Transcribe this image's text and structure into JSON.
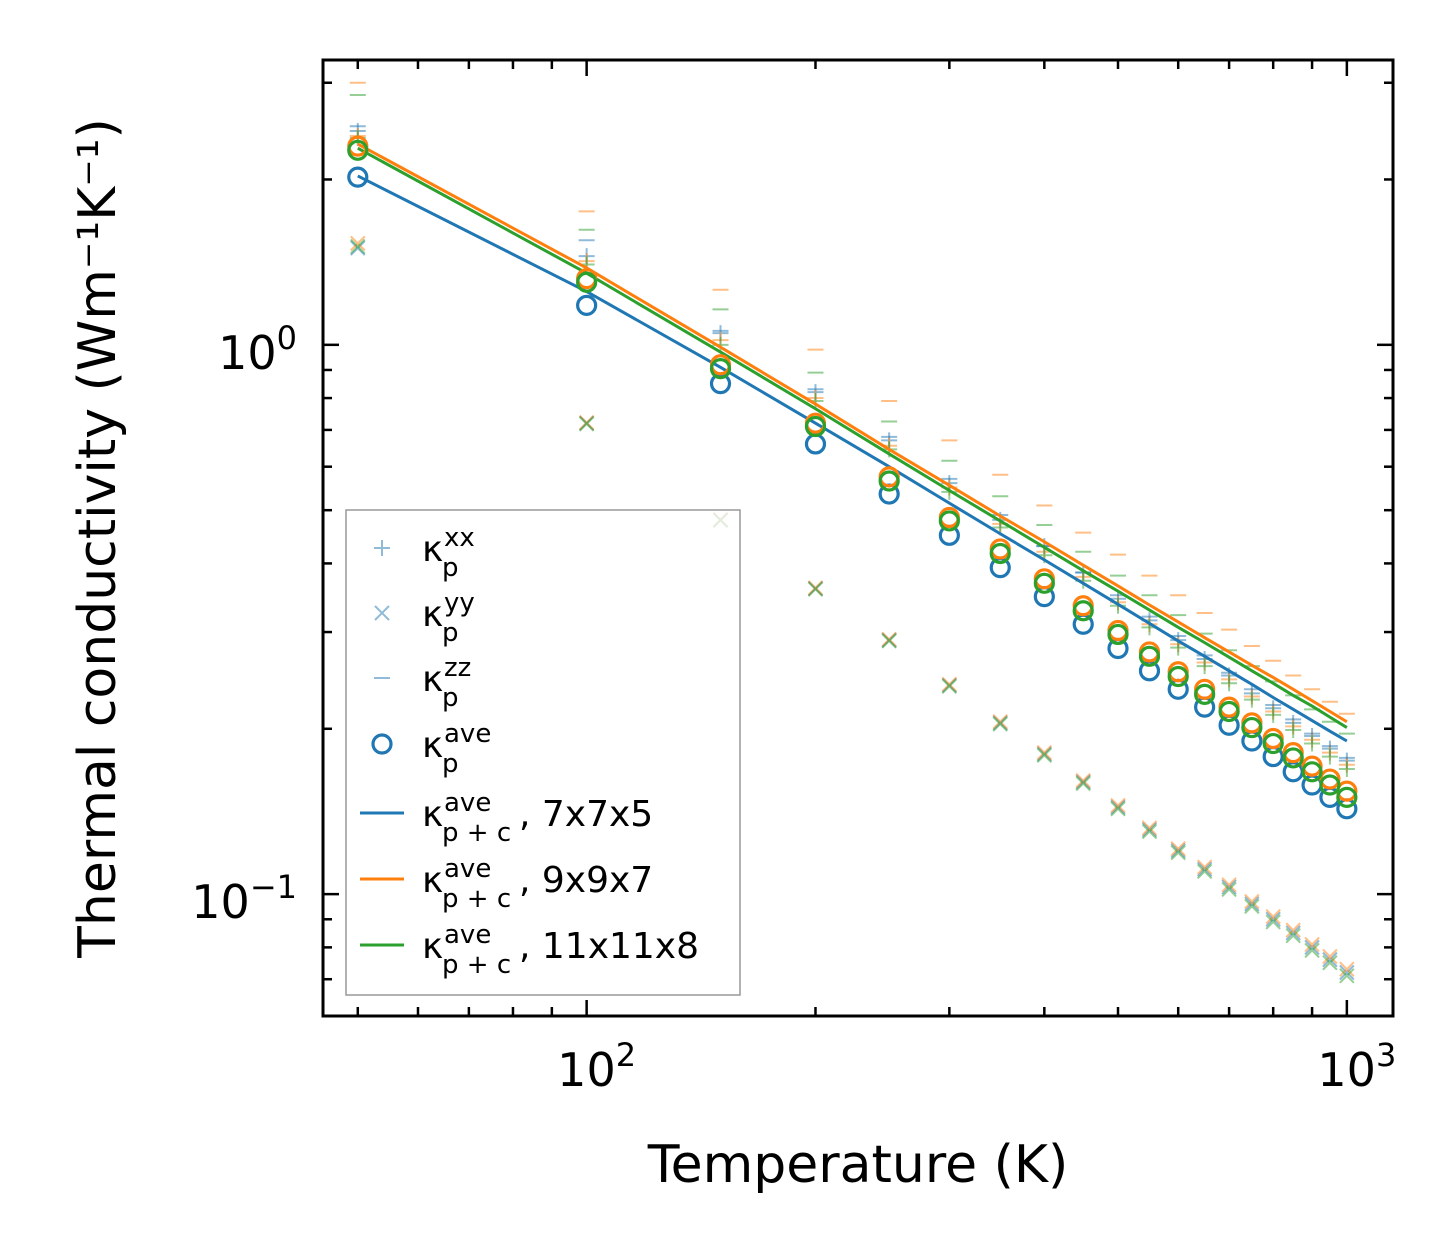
{
  "chart_data": {
    "type": "scatter",
    "title": "",
    "xlabel": "Temperature (K)",
    "ylabel": "Thermal conductivity (Wm⁻¹K⁻¹)",
    "xscale": "log",
    "yscale": "log",
    "xlim": [
      45,
      1150
    ],
    "ylim": [
      0.06,
      3.3
    ],
    "x_ticks": [
      {
        "value": 100,
        "base": "10",
        "exp": "2"
      },
      {
        "value": 1000,
        "base": "10",
        "exp": "3"
      }
    ],
    "y_ticks": [
      {
        "value": 0.1,
        "base": "10",
        "exp": "−1"
      },
      {
        "value": 1,
        "base": "10",
        "exp": "0"
      }
    ],
    "temperatures": [
      50,
      100,
      150,
      200,
      250,
      300,
      350,
      400,
      450,
      500,
      550,
      600,
      650,
      700,
      750,
      800,
      850,
      900,
      950,
      1000
    ],
    "colors": {
      "grid_7x7x5": "#1f77b4",
      "grid_9x9x7": "#ff7f0e",
      "grid_11x11x8": "#2ca02c"
    },
    "series": [
      {
        "name": "kp_xx_7x7x5",
        "marker": "plus",
        "color": "#1f77b4",
        "values": [
          2.45,
          1.45,
          1.05,
          0.82,
          0.67,
          0.56,
          0.48,
          0.43,
          0.385,
          0.345,
          0.315,
          0.29,
          0.268,
          0.25,
          0.232,
          0.218,
          0.205,
          0.194,
          0.184,
          0.175
        ]
      },
      {
        "name": "kp_xx_9x9x7",
        "marker": "plus",
        "color": "#ff7f0e",
        "values": [
          2.4,
          1.42,
          1.02,
          0.8,
          0.655,
          0.55,
          0.472,
          0.42,
          0.378,
          0.34,
          0.31,
          0.285,
          0.264,
          0.246,
          0.229,
          0.215,
          0.202,
          0.191,
          0.181,
          0.172
        ]
      },
      {
        "name": "kp_xx_11x11x8",
        "marker": "plus",
        "color": "#2ca02c",
        "values": [
          2.38,
          1.4,
          1.0,
          0.79,
          0.645,
          0.54,
          0.465,
          0.414,
          0.372,
          0.335,
          0.306,
          0.281,
          0.26,
          0.242,
          0.226,
          0.212,
          0.199,
          0.188,
          0.178,
          0.169
        ]
      },
      {
        "name": "kp_yy_7x7x5",
        "marker": "x",
        "color": "#1f77b4",
        "values": [
          1.5,
          0.72,
          0.48,
          0.36,
          0.29,
          0.24,
          0.205,
          0.18,
          0.16,
          0.144,
          0.131,
          0.12,
          0.111,
          0.103,
          0.096,
          0.09,
          0.085,
          0.08,
          0.076,
          0.072
        ]
      },
      {
        "name": "kp_yy_9x9x7",
        "marker": "x",
        "color": "#ff7f0e",
        "values": [
          1.53,
          0.722,
          0.481,
          0.361,
          0.291,
          0.241,
          0.206,
          0.181,
          0.161,
          0.145,
          0.132,
          0.121,
          0.112,
          0.104,
          0.097,
          0.091,
          0.086,
          0.081,
          0.077,
          0.073
        ]
      },
      {
        "name": "kp_yy_11x11x8",
        "marker": "x",
        "color": "#2ca02c",
        "values": [
          1.51,
          0.718,
          0.479,
          0.359,
          0.289,
          0.239,
          0.204,
          0.179,
          0.159,
          0.143,
          0.13,
          0.119,
          0.11,
          0.102,
          0.095,
          0.089,
          0.084,
          0.079,
          0.075,
          0.071
        ]
      },
      {
        "name": "kp_zz_7x7x5",
        "marker": "hline",
        "color": "#1f77b4",
        "values": [
          2.5,
          1.55,
          1.06,
          0.83,
          0.68,
          0.57,
          0.49,
          0.43,
          0.385,
          0.35,
          0.32,
          0.295,
          0.272,
          0.253,
          0.236,
          0.221,
          0.208,
          0.196,
          0.186,
          0.177
        ]
      },
      {
        "name": "kp_zz_9x9x7",
        "marker": "hline",
        "color": "#ff7f0e",
        "values": [
          3.0,
          1.75,
          1.26,
          0.98,
          0.79,
          0.67,
          0.58,
          0.51,
          0.455,
          0.415,
          0.38,
          0.35,
          0.325,
          0.303,
          0.283,
          0.266,
          0.25,
          0.236,
          0.224,
          0.213
        ]
      },
      {
        "name": "kp_zz_11x11x8",
        "marker": "hline",
        "color": "#2ca02c",
        "values": [
          2.85,
          1.62,
          1.16,
          0.89,
          0.725,
          0.615,
          0.53,
          0.47,
          0.42,
          0.38,
          0.35,
          0.322,
          0.298,
          0.278,
          0.26,
          0.244,
          0.23,
          0.217,
          0.206,
          0.196
        ]
      },
      {
        "name": "kp_ave_7x7x5",
        "marker": "circle",
        "color": "#1f77b4",
        "values": [
          2.02,
          1.18,
          0.85,
          0.66,
          0.535,
          0.45,
          0.393,
          0.348,
          0.31,
          0.28,
          0.255,
          0.236,
          0.219,
          0.203,
          0.19,
          0.178,
          0.167,
          0.158,
          0.15,
          0.143
        ]
      },
      {
        "name": "kp_ave_9x9x7",
        "marker": "circle",
        "color": "#ff7f0e",
        "values": [
          2.3,
          1.32,
          0.92,
          0.72,
          0.575,
          0.485,
          0.425,
          0.375,
          0.335,
          0.302,
          0.276,
          0.254,
          0.236,
          0.219,
          0.205,
          0.192,
          0.181,
          0.171,
          0.162,
          0.154
        ]
      },
      {
        "name": "kp_ave_11x11x8",
        "marker": "circle",
        "color": "#2ca02c",
        "values": [
          2.26,
          1.3,
          0.905,
          0.71,
          0.565,
          0.478,
          0.417,
          0.368,
          0.328,
          0.297,
          0.271,
          0.249,
          0.231,
          0.215,
          0.201,
          0.188,
          0.177,
          0.167,
          0.158,
          0.15
        ]
      },
      {
        "name": "kpc_ave_7x7x5",
        "marker": "line",
        "color": "#1f77b4",
        "values": [
          2.03,
          1.25,
          0.91,
          0.72,
          0.6,
          0.515,
          0.453,
          0.406,
          0.368,
          0.337,
          0.311,
          0.289,
          0.271,
          0.255,
          0.241,
          0.228,
          0.217,
          0.207,
          0.198,
          0.19
        ]
      },
      {
        "name": "kpc_ave_9x9x7",
        "marker": "line",
        "color": "#ff7f0e",
        "values": [
          2.32,
          1.38,
          0.99,
          0.78,
          0.645,
          0.555,
          0.488,
          0.438,
          0.397,
          0.364,
          0.336,
          0.313,
          0.293,
          0.276,
          0.261,
          0.248,
          0.236,
          0.225,
          0.215,
          0.206
        ]
      },
      {
        "name": "kpc_ave_11x11x8",
        "marker": "line",
        "color": "#2ca02c",
        "values": [
          2.28,
          1.35,
          0.97,
          0.765,
          0.633,
          0.543,
          0.478,
          0.428,
          0.388,
          0.356,
          0.329,
          0.306,
          0.287,
          0.27,
          0.255,
          0.242,
          0.23,
          0.22,
          0.21,
          0.201
        ]
      }
    ],
    "legend": {
      "location": "lower-left",
      "entries": [
        {
          "marker": "plus",
          "color": "#1f77b4",
          "symbol": "κ",
          "sup": "xx",
          "sub": "p",
          "suffix": ""
        },
        {
          "marker": "x",
          "color": "#1f77b4",
          "symbol": "κ",
          "sup": "yy",
          "sub": "p",
          "suffix": ""
        },
        {
          "marker": "hline",
          "color": "#1f77b4",
          "symbol": "κ",
          "sup": "zz",
          "sub": "p",
          "suffix": ""
        },
        {
          "marker": "circle",
          "color": "#1f77b4",
          "symbol": "κ",
          "sup": "ave",
          "sub": "p",
          "suffix": ""
        },
        {
          "marker": "line",
          "color": "#1f77b4",
          "symbol": "κ",
          "sup": "ave",
          "sub": "p + c",
          "suffix": ", 7x7x5"
        },
        {
          "marker": "line",
          "color": "#ff7f0e",
          "symbol": "κ",
          "sup": "ave",
          "sub": "p + c",
          "suffix": ", 9x9x7"
        },
        {
          "marker": "line",
          "color": "#2ca02c",
          "symbol": "κ",
          "sup": "ave",
          "sub": "p + c",
          "suffix": ", 11x11x8"
        }
      ]
    }
  }
}
